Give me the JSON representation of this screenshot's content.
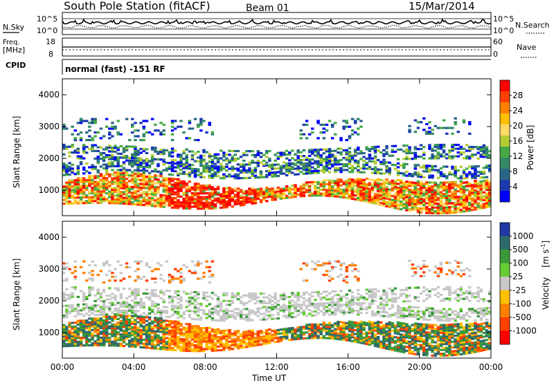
{
  "header": {
    "station": "South Pole Station (fitACF)",
    "beam": "Beam 01",
    "date": "15/Mar/2014"
  },
  "panels": {
    "noise": {
      "left_label": "N.Sky",
      "left_ticks": [
        "10^5",
        "10^0"
      ],
      "right_label": "N.Search",
      "right_ticks": [
        "10^5",
        "10^0"
      ]
    },
    "freq": {
      "left_label_1": "Freq.",
      "left_label_2": "[MHz]",
      "left_ticks": [
        "18",
        "8"
      ],
      "right_label": "Nave",
      "right_ticks": [
        "60",
        "0"
      ]
    },
    "cpid": {
      "label": "CPID",
      "text": "normal (fast) -151 RF"
    }
  },
  "chart_data": [
    {
      "type": "heatmap",
      "name_text": "Power",
      "ylabel": "Slant Range [km]",
      "xlabel": "",
      "ylim": [
        200,
        4500
      ],
      "yticks": [
        1000,
        2000,
        3000,
        4000
      ],
      "xticks": [
        "00:00",
        "04:00",
        "08:00",
        "12:00",
        "16:00",
        "20:00",
        "00:00"
      ],
      "colorbar": {
        "label": "Power [dB]",
        "ticks": [
          "28",
          "24",
          "20",
          "16",
          "12",
          "8",
          "4"
        ],
        "colors": [
          "#ff0000",
          "#ff4000",
          "#ff8000",
          "#ffbf00",
          "#ffd966",
          "#b3cc33",
          "#44aa44",
          "#338866",
          "#2a6688",
          "#1a3ab0",
          "#0000ff"
        ]
      }
    },
    {
      "type": "heatmap",
      "name_text": "Velocity",
      "ylabel": "Slant Range [km]",
      "xlabel": "Time UT",
      "ylim": [
        200,
        4500
      ],
      "yticks": [
        1000,
        2000,
        3000,
        4000
      ],
      "xticks": [
        "00:00",
        "04:00",
        "08:00",
        "12:00",
        "16:00",
        "20:00",
        "00:00"
      ],
      "colorbar": {
        "label_1": "Velocity",
        "label_2": "[m s",
        "label_sup": "-1",
        "label_3": "]",
        "ticks": [
          "1000",
          "500",
          "100",
          "25",
          "-25",
          "-100",
          "-500",
          "-1000"
        ],
        "colors": [
          "#1f3aa5",
          "#2e6b6b",
          "#3a9a3a",
          "#66cc33",
          "#c8c8c8",
          "#ffc000",
          "#ff8000",
          "#ff4000",
          "#ff0000"
        ]
      }
    }
  ]
}
